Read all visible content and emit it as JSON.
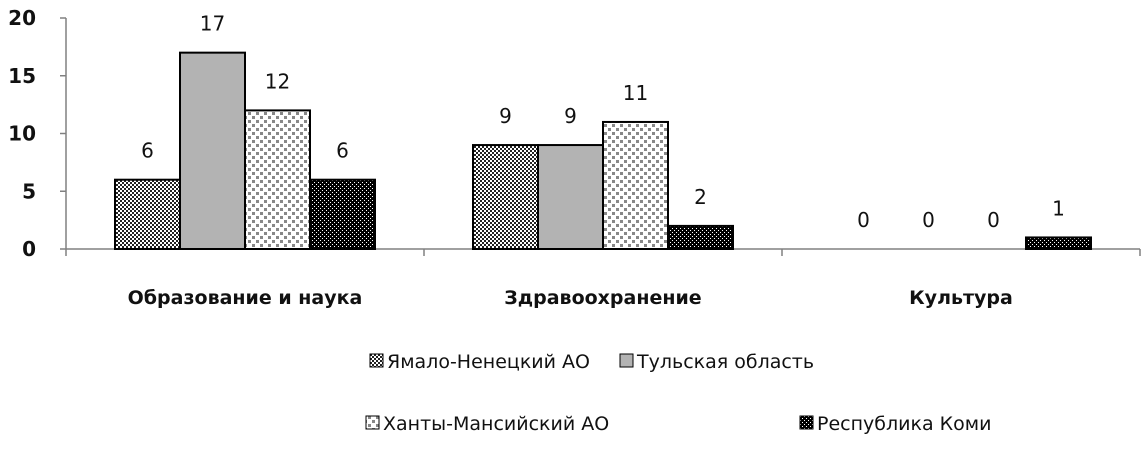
{
  "chart_data": {
    "type": "bar",
    "categories": [
      "Образование и наука",
      "Здравоохранение",
      "Культура"
    ],
    "series": [
      {
        "name": "Ямало-Ненецкий  АО",
        "values": [
          6,
          9,
          0
        ],
        "pattern": "dense-check"
      },
      {
        "name": "Тульская область",
        "values": [
          17,
          9,
          0
        ],
        "pattern": "solid-gray"
      },
      {
        "name": "Ханты-Мансийский АО",
        "values": [
          12,
          11,
          0
        ],
        "pattern": "sparse-dots"
      },
      {
        "name": "Республика Коми",
        "values": [
          6,
          2,
          1
        ],
        "pattern": "dark-check"
      }
    ],
    "ylim": [
      0,
      20
    ],
    "yticks": [
      0,
      5,
      10,
      15,
      20
    ],
    "grid": false,
    "legend": "bottom",
    "colors": {
      "solid": "#b3b3b3",
      "stroke": "#000000",
      "axis": "#808080"
    }
  }
}
